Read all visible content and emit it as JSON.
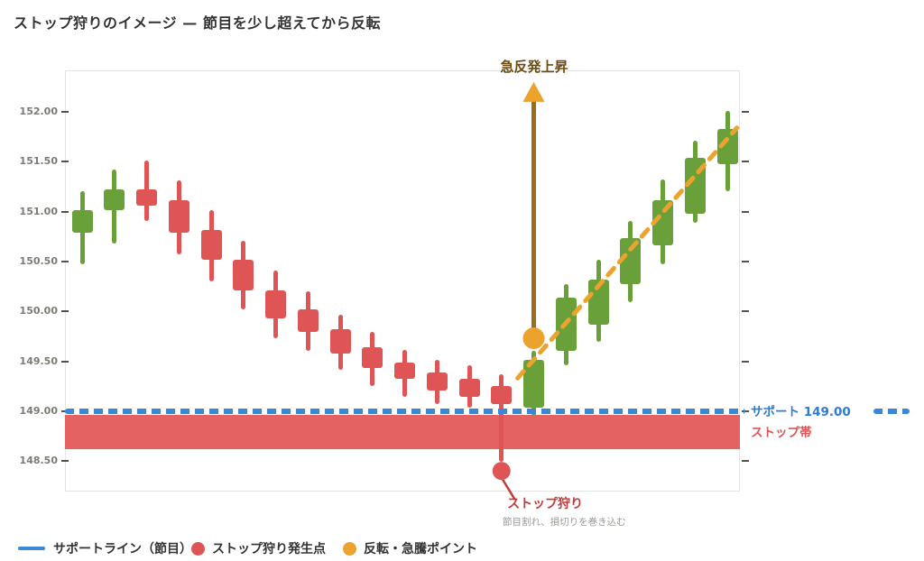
{
  "title": "ストップ狩りのイメージ — 節目を少し超えてから反転",
  "colors": {
    "candle_up": "#6aa039",
    "candle_down": "#df5555",
    "support_blue": "#3c86d8",
    "support_text_blue": "#2e7bd0",
    "stop_zone_band": "#e46262",
    "rebound_orange": "#eba32d",
    "arrow_shaft_brown": "#9c6b1b",
    "rebound_text_brown": "#6b4a10",
    "stop_label_red": "#c23b3b",
    "caption_gray": "#9a9a95",
    "axis_text_gray": "#7b7b76",
    "title_dark": "#333333"
  },
  "y_axis": {
    "labels": [
      "152.00",
      "151.50",
      "151.00",
      "150.50",
      "150.00",
      "149.50",
      "149.00",
      "148.50"
    ]
  },
  "chart_data": {
    "type": "candlestick",
    "title": "ストップ狩りのイメージ — 節目を少し超えてから反転",
    "ylabel": "",
    "xlabel": "",
    "ylim": [
      148.25,
      152.45
    ],
    "y_ticks": [
      152.0,
      151.5,
      151.0,
      150.5,
      150.0,
      149.5,
      149.0,
      148.5
    ],
    "grid": false,
    "support_price": 149.0,
    "stop_zone": {
      "top_price": 148.96,
      "bottom_price": 148.62
    },
    "candles": [
      {
        "o": 150.79,
        "h": 151.2,
        "l": 150.47,
        "c": 151.01
      },
      {
        "o": 151.01,
        "h": 151.42,
        "l": 150.68,
        "c": 151.22
      },
      {
        "o": 151.22,
        "h": 151.51,
        "l": 150.91,
        "c": 151.06
      },
      {
        "o": 151.11,
        "h": 151.31,
        "l": 150.57,
        "c": 150.79
      },
      {
        "o": 150.82,
        "h": 151.01,
        "l": 150.3,
        "c": 150.52
      },
      {
        "o": 150.52,
        "h": 150.71,
        "l": 150.02,
        "c": 150.21
      },
      {
        "o": 150.21,
        "h": 150.41,
        "l": 149.73,
        "c": 149.93
      },
      {
        "o": 150.02,
        "h": 150.2,
        "l": 149.6,
        "c": 149.79
      },
      {
        "o": 149.82,
        "h": 149.97,
        "l": 149.41,
        "c": 149.58
      },
      {
        "o": 149.64,
        "h": 149.79,
        "l": 149.25,
        "c": 149.43
      },
      {
        "o": 149.49,
        "h": 149.61,
        "l": 149.14,
        "c": 149.32
      },
      {
        "o": 149.39,
        "h": 149.51,
        "l": 149.07,
        "c": 149.21
      },
      {
        "o": 149.32,
        "h": 149.46,
        "l": 149.03,
        "c": 149.14
      },
      {
        "o": 149.25,
        "h": 149.37,
        "l": 148.49,
        "c": 149.07
      },
      {
        "o": 149.03,
        "h": 149.6,
        "l": 148.95,
        "c": 149.51
      },
      {
        "o": 149.6,
        "h": 150.27,
        "l": 149.46,
        "c": 150.14
      },
      {
        "o": 149.87,
        "h": 150.52,
        "l": 149.69,
        "c": 150.32
      },
      {
        "o": 150.27,
        "h": 150.91,
        "l": 150.09,
        "c": 150.73
      },
      {
        "o": 150.66,
        "h": 151.32,
        "l": 150.47,
        "c": 151.11
      },
      {
        "o": 150.98,
        "h": 151.71,
        "l": 150.89,
        "c": 151.54
      },
      {
        "o": 151.48,
        "h": 152.01,
        "l": 151.2,
        "c": 151.83
      }
    ],
    "annotations": {
      "rebound_label": "急反発上昇",
      "support_label": "サポート 149.00",
      "zone_label": "ストップ帯",
      "stop_hunt_label": "ストップ狩り",
      "stop_hunt_caption": "節目割れ、損切りを巻き込む",
      "stop_dot": {
        "candle_index": 13,
        "price": 148.4
      },
      "rebound_dot": {
        "candle_index": 14,
        "price": 149.73
      },
      "rebound_arrow": {
        "candle_index": 14,
        "from_price": 149.78,
        "to_price": 152.3
      },
      "trend_line": {
        "from_candle": 13.5,
        "from_price": 149.33,
        "to_candle": 20.3,
        "to_price": 151.84
      }
    }
  },
  "legend": [
    {
      "swatch": "line",
      "color": "#3c86d8",
      "label": "サポートライン（節目）"
    },
    {
      "swatch": "dot",
      "color": "#df5555",
      "label": "ストップ狩り発生点"
    },
    {
      "swatch": "dot",
      "color": "#eba32d",
      "label": "反転・急騰ポイント"
    }
  ]
}
